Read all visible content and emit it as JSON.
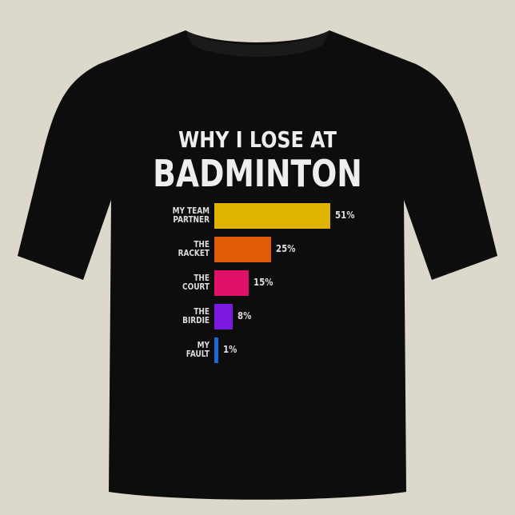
{
  "chart_data": {
    "type": "bar",
    "orientation": "horizontal",
    "title": "WHY I LOSE AT",
    "subtitle": "BADMINTON",
    "categories": [
      "MY TEAM PARTNER",
      "THE RACKET",
      "THE COURT",
      "THE BIRDIE",
      "MY FAULT"
    ],
    "category_lines": [
      [
        "MY TEAM",
        "PARTNER"
      ],
      [
        "THE",
        "RACKET"
      ],
      [
        "THE",
        "COURT"
      ],
      [
        "THE",
        "BIRDIE"
      ],
      [
        "MY",
        "FAULT"
      ]
    ],
    "values": [
      51,
      25,
      15,
      8,
      1
    ],
    "data_labels": [
      "51%",
      "25%",
      "15%",
      "8%",
      "1%"
    ],
    "colors": [
      "#e0b300",
      "#e05a08",
      "#e0106a",
      "#7a18e0",
      "#1a6ad8"
    ],
    "grid": false
  },
  "colors": {
    "shirt": "#0d0d0d",
    "background": "#ddd8cc"
  }
}
